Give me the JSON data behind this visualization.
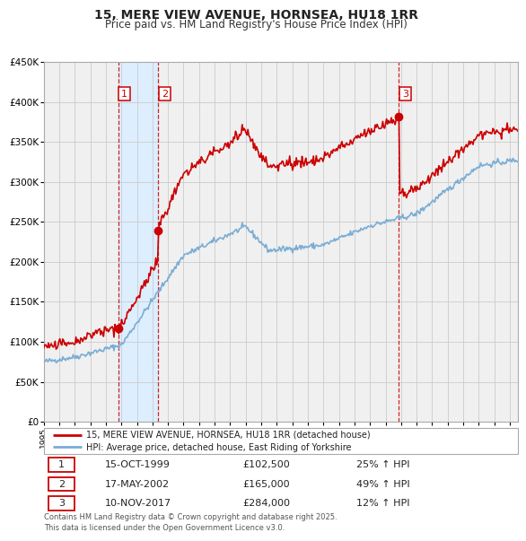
{
  "title": "15, MERE VIEW AVENUE, HORNSEA, HU18 1RR",
  "subtitle": "Price paid vs. HM Land Registry's House Price Index (HPI)",
  "legend_label_red": "15, MERE VIEW AVENUE, HORNSEA, HU18 1RR (detached house)",
  "legend_label_blue": "HPI: Average price, detached house, East Riding of Yorkshire",
  "transactions": [
    {
      "num": 1,
      "date_str": "15-OCT-1999",
      "date_val": 1999.79,
      "price": 102500,
      "pct": "25%",
      "dir": "↑"
    },
    {
      "num": 2,
      "date_str": "17-MAY-2002",
      "date_val": 2002.38,
      "price": 165000,
      "pct": "49%",
      "dir": "↑"
    },
    {
      "num": 3,
      "date_str": "10-NOV-2017",
      "date_val": 2017.86,
      "price": 284000,
      "pct": "12%",
      "dir": "↑"
    }
  ],
  "red_color": "#cc0000",
  "blue_color": "#7aadd4",
  "shade_color": "#ddeeff",
  "vline_color": "#cc0000",
  "grid_color": "#cccccc",
  "bg_color": "#f0f0f0",
  "ylim": [
    0,
    450000
  ],
  "xlim_start": 1995.0,
  "xlim_end": 2025.5,
  "yticks": [
    0,
    50000,
    100000,
    150000,
    200000,
    250000,
    300000,
    350000,
    400000,
    450000
  ],
  "ylabels": [
    "£0",
    "£50K",
    "£100K",
    "£150K",
    "£200K",
    "£250K",
    "£300K",
    "£350K",
    "£400K",
    "£450K"
  ],
  "footer": "Contains HM Land Registry data © Crown copyright and database right 2025.\nThis data is licensed under the Open Government Licence v3.0."
}
